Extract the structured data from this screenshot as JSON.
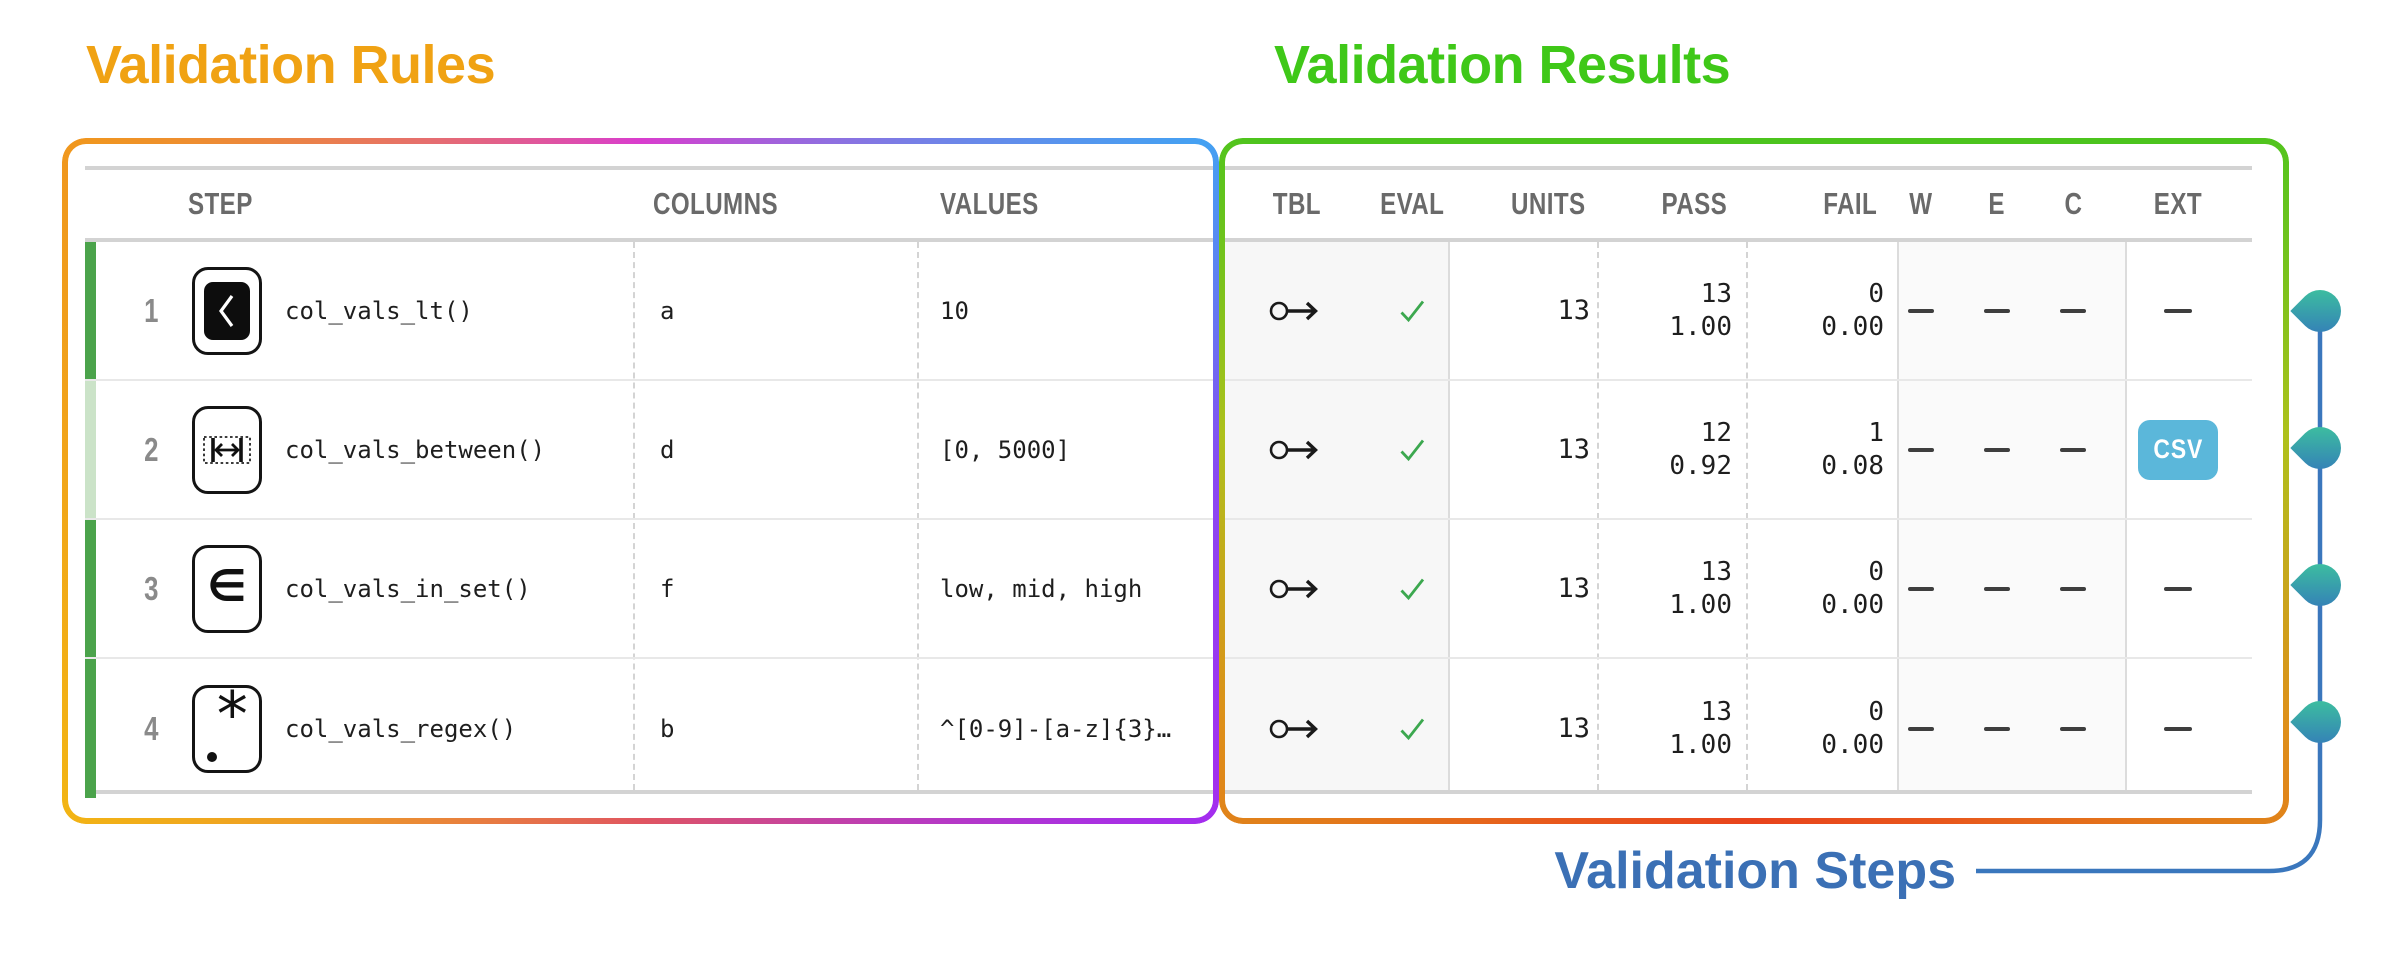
{
  "titles": {
    "rules": "Validation Rules",
    "results": "Validation Results",
    "steps": "Validation Steps"
  },
  "colors": {
    "rules_title": "#F0A213",
    "results_title": "#3FC818",
    "steps_title": "#3B70B5",
    "pass_strip": "#4BA34B",
    "partial_strip": "#CBE3C8",
    "csv_badge": "#5BB7DA",
    "check": "#3CA84F",
    "droplet_top": "#3EC99B",
    "droplet_bottom": "#3377BB",
    "connector": "#3A77BD"
  },
  "table": {
    "headers": [
      "STEP",
      "COLUMNS",
      "VALUES",
      "TBL",
      "EVAL",
      "UNITS",
      "PASS",
      "FAIL",
      "W",
      "E",
      "C",
      "EXT"
    ],
    "rows": [
      {
        "step": "1",
        "icon": "col-vals-lt-icon",
        "fn": "col_vals_lt()",
        "columns": "a",
        "values": "10",
        "tbl": "table-arrow",
        "eval": "pass",
        "units": "13",
        "pass": [
          "13",
          "1.00"
        ],
        "fail": [
          "0",
          "0.00"
        ],
        "w": "—",
        "e": "—",
        "c": "—",
        "ext": "—",
        "strip": "full"
      },
      {
        "step": "2",
        "icon": "col-vals-between-icon",
        "fn": "col_vals_between()",
        "columns": "d",
        "values": "[0, 5000]",
        "tbl": "table-arrow",
        "eval": "pass",
        "units": "13",
        "pass": [
          "12",
          "0.92"
        ],
        "fail": [
          "1",
          "0.08"
        ],
        "w": "—",
        "e": "—",
        "c": "—",
        "ext": "CSV",
        "strip": "partial"
      },
      {
        "step": "3",
        "icon": "col-vals-in-set-icon",
        "fn": "col_vals_in_set()",
        "columns": "f",
        "values": "low, mid, high",
        "tbl": "table-arrow",
        "eval": "pass",
        "units": "13",
        "pass": [
          "13",
          "1.00"
        ],
        "fail": [
          "0",
          "0.00"
        ],
        "w": "—",
        "e": "—",
        "c": "—",
        "ext": "—",
        "strip": "full"
      },
      {
        "step": "4",
        "icon": "col-vals-regex-icon",
        "fn": "col_vals_regex()",
        "columns": "b",
        "values": "^[0-9]-[a-z]{3}…",
        "tbl": "table-arrow",
        "eval": "pass",
        "units": "13",
        "pass": [
          "13",
          "1.00"
        ],
        "fail": [
          "0",
          "0.00"
        ],
        "w": "—",
        "e": "—",
        "c": "—",
        "ext": "—",
        "strip": "full"
      }
    ]
  }
}
